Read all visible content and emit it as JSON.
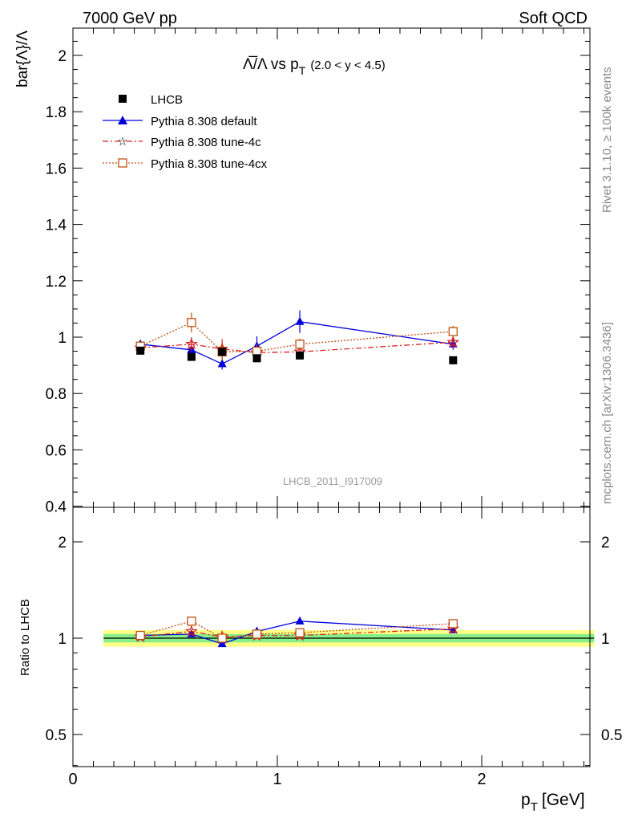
{
  "header": {
    "left": "7000 GeV pp",
    "right": "Soft QCD"
  },
  "side_text": {
    "upper": "Rivet 3.1.10, ≥ 100k events",
    "lower": "mcplots.cern.ch [arXiv:1306.3436]"
  },
  "watermark": "LHCB_2011_I917009",
  "colors": {
    "data": "#000000",
    "default": "#0000dd",
    "tune4c": "#dd2222",
    "tune4cx": "#c05010",
    "band_inner": "#88ee88",
    "band_outer": "#ffff88"
  },
  "chart_data": [
    {
      "type": "scatter",
      "title_parts": {
        "main": "Λ̅/Λ vs p",
        "sub": "T",
        "cut": "(2.0 < y < 4.5)"
      },
      "ylabel": "bar{Λ}/Λ",
      "xlabel": "p",
      "xlabel_sub": "T",
      "xlabel_unit": "[GeV]",
      "xlim": [
        0,
        2.6
      ],
      "ylim": [
        0.4,
        2.1
      ],
      "yticks": [
        "0.4",
        "0.6",
        "0.8",
        "1",
        "1.2",
        "1.4",
        "1.6",
        "1.8",
        "2"
      ],
      "legend_position": "top-left",
      "series": [
        {
          "name": "LHCB",
          "marker": "square",
          "x": [
            0.33,
            0.58,
            0.73,
            0.9,
            1.11,
            1.86
          ],
          "y": [
            0.952,
            0.93,
            0.948,
            0.925,
            0.935,
            0.918
          ]
        },
        {
          "name": "Pythia 8.308 default",
          "marker": "triangle",
          "x": [
            0.33,
            0.58,
            0.73,
            0.9,
            1.11,
            1.86
          ],
          "y": [
            0.975,
            0.955,
            0.905,
            0.968,
            1.055,
            0.975
          ],
          "err": [
            0.015,
            0.02,
            0.02,
            0.035,
            0.04,
            0.02
          ]
        },
        {
          "name": "Pythia 8.308 tune-4c",
          "marker": "star",
          "x": [
            0.33,
            0.58,
            0.73,
            0.9,
            1.11,
            1.86
          ],
          "y": [
            0.962,
            0.975,
            0.958,
            0.945,
            0.948,
            0.982
          ],
          "err": [
            0.015,
            0.025,
            0.035,
            0.03,
            0.02,
            0.02
          ]
        },
        {
          "name": "Pythia 8.308 tune-4cx",
          "marker": "open-square",
          "x": [
            0.33,
            0.58,
            0.73,
            0.9,
            1.11,
            1.86
          ],
          "y": [
            0.968,
            1.052,
            0.948,
            0.95,
            0.975,
            1.02
          ],
          "err": [
            0.015,
            0.035,
            0.03,
            0.025,
            0.02,
            0.02
          ]
        }
      ]
    },
    {
      "type": "scatter",
      "ylabel": "Ratio to LHCB",
      "xlim": [
        0,
        2.6
      ],
      "ylim": [
        0.35,
        2.4
      ],
      "log_y": true,
      "yticks": [
        "0.5",
        "1",
        "2"
      ],
      "xticks": [
        "0",
        "1",
        "2"
      ],
      "band": {
        "x": [
          0.15,
          2.55
        ],
        "inner": [
          0.97,
          1.03
        ],
        "outer": [
          0.94,
          1.06
        ]
      },
      "series": [
        {
          "name": "Pythia 8.308 default",
          "x": [
            0.33,
            0.58,
            0.73,
            0.9,
            1.11,
            1.86
          ],
          "y": [
            1.02,
            1.03,
            0.96,
            1.05,
            1.13,
            1.06
          ]
        },
        {
          "name": "Pythia 8.308 tune-4c",
          "x": [
            0.33,
            0.58,
            0.73,
            0.9,
            1.11,
            1.86
          ],
          "y": [
            1.01,
            1.05,
            1.01,
            1.02,
            1.02,
            1.07
          ]
        },
        {
          "name": "Pythia 8.308 tune-4cx",
          "x": [
            0.33,
            0.58,
            0.73,
            0.9,
            1.11,
            1.86
          ],
          "y": [
            1.02,
            1.13,
            1.0,
            1.03,
            1.04,
            1.11
          ]
        }
      ]
    }
  ]
}
